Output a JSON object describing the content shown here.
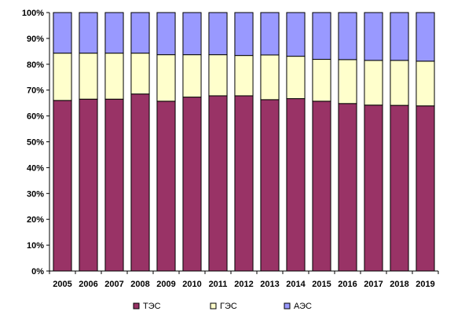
{
  "chart_data": {
    "type": "bar",
    "stacked": "percent",
    "categories": [
      "2005",
      "2006",
      "2007",
      "2008",
      "2009",
      "2010",
      "2011",
      "2012",
      "2013",
      "2014",
      "2015",
      "2016",
      "2017",
      "2018",
      "2019"
    ],
    "series": [
      {
        "name": "ТЭС",
        "color": "#993366",
        "values": [
          66,
          66.5,
          66.5,
          68.5,
          65.7,
          67.3,
          67.8,
          67.8,
          66.3,
          66.7,
          65.7,
          64.8,
          64.2,
          64.1,
          63.9
        ]
      },
      {
        "name": "ГЭС",
        "color": "#FFFFCC",
        "values": [
          18.3,
          17.8,
          17.8,
          15.8,
          18.0,
          16.4,
          15.9,
          15.6,
          17.3,
          16.4,
          16.2,
          17.0,
          17.3,
          17.4,
          17.3
        ]
      },
      {
        "name": "АЭС",
        "color": "#9999FF",
        "values": [
          15.7,
          15.7,
          15.7,
          15.7,
          16.3,
          16.3,
          16.3,
          16.6,
          16.4,
          16.9,
          18.1,
          18.2,
          18.5,
          18.5,
          18.8
        ]
      }
    ],
    "ylim": [
      0,
      100
    ],
    "yticks": [
      "0%",
      "10%",
      "20%",
      "30%",
      "40%",
      "50%",
      "60%",
      "70%",
      "80%",
      "90%",
      "100%"
    ],
    "grid": false,
    "legend_position": "bottom",
    "title": "",
    "xlabel": "",
    "ylabel": ""
  }
}
